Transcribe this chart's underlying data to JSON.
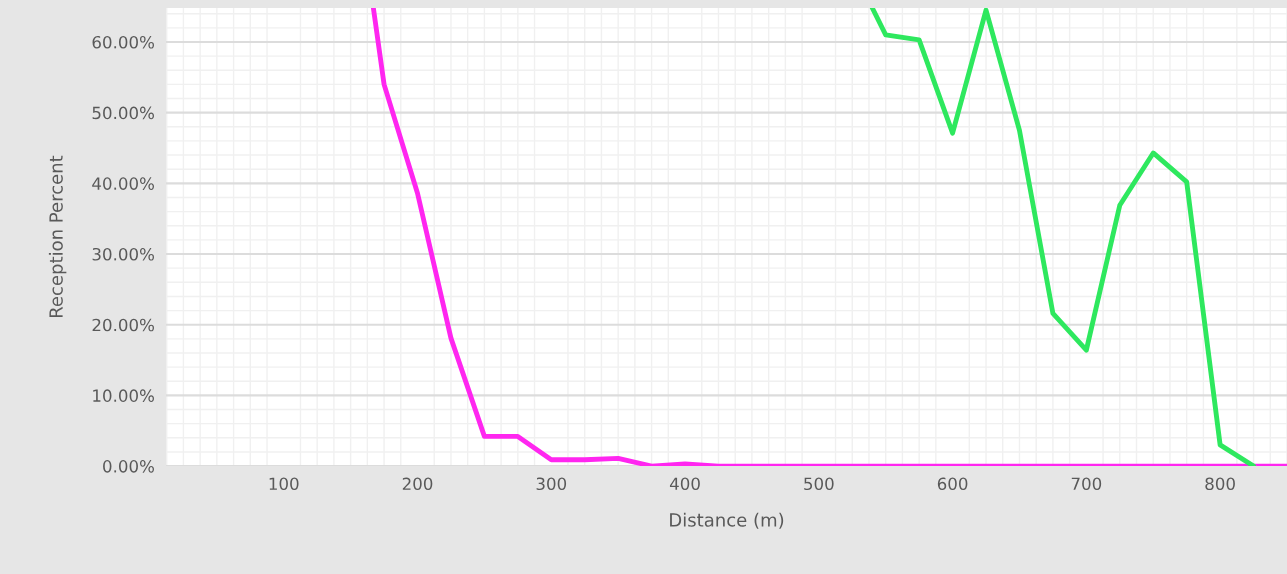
{
  "chart_data": {
    "type": "line",
    "xlabel": "Distance (m)",
    "ylabel": "Reception Percent",
    "series": [
      {
        "color": "#ff26f0",
        "x": [
          167,
          175,
          200,
          225,
          250,
          275,
          300,
          325,
          350,
          375,
          400,
          425,
          450,
          475,
          500,
          525,
          550,
          575,
          600,
          625,
          650,
          675,
          700,
          725,
          750,
          775,
          800,
          825,
          850
        ],
        "values": [
          64.8,
          54.0,
          38.6,
          18.1,
          4.2,
          4.2,
          0.9,
          0.9,
          1.1,
          0,
          0.3,
          0,
          0,
          0,
          0,
          0,
          0,
          0,
          0,
          0,
          0,
          0,
          0,
          0,
          0,
          0,
          0,
          0,
          0
        ]
      },
      {
        "color": "#2ee85e",
        "x": [
          540,
          550,
          575,
          600,
          625,
          650,
          675,
          700,
          725,
          750,
          775,
          800,
          825
        ],
        "values": [
          64.8,
          61.0,
          60.3,
          47.1,
          64.5,
          47.5,
          21.6,
          16.4,
          36.9,
          44.3,
          40.2,
          3.0,
          0
        ]
      }
    ],
    "xlim": [
      12,
      850
    ],
    "ylim": [
      0,
      64.8
    ],
    "xticks": [
      100,
      200,
      300,
      400,
      500,
      600,
      700,
      800
    ],
    "yticks": [
      {
        "value": 0,
        "label": "0.00%"
      },
      {
        "value": 10,
        "label": "10.00%"
      },
      {
        "value": 20,
        "label": "20.00%"
      },
      {
        "value": 30,
        "label": "30.00%"
      },
      {
        "value": 40,
        "label": "40.00%"
      },
      {
        "value": 50,
        "label": "50.00%"
      },
      {
        "value": 60,
        "label": "60.00%"
      }
    ],
    "grid": true
  }
}
